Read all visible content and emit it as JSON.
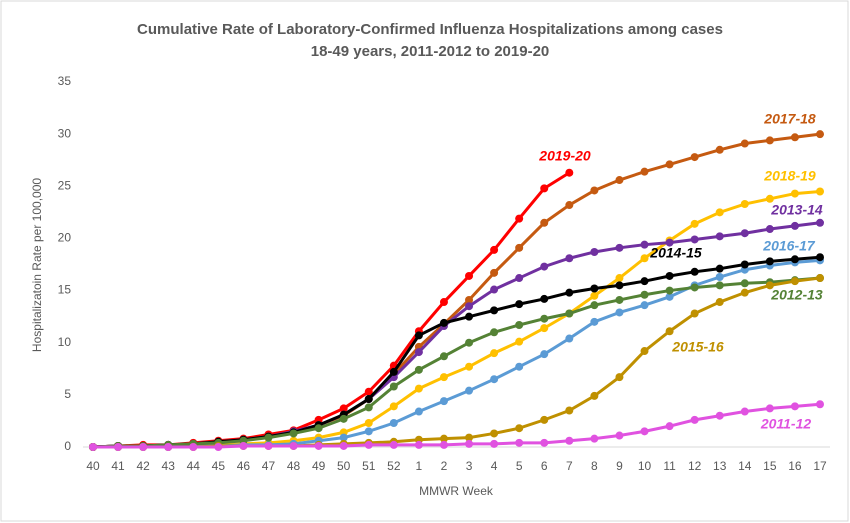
{
  "chart_data": {
    "type": "line",
    "title": "Cumulative Rate of Laboratory-Confirmed  Influenza Hospitalizations among cases",
    "subtitle": "18-49 years, 2011-2012 to 2019-20",
    "x_label": "MMWR Week",
    "y_label": "Hospitalizatoin Rate per 100,000",
    "categories": [
      "40",
      "41",
      "42",
      "43",
      "44",
      "45",
      "46",
      "47",
      "48",
      "49",
      "50",
      "51",
      "52",
      "1",
      "2",
      "3",
      "4",
      "5",
      "6",
      "7",
      "8",
      "9",
      "10",
      "11",
      "12",
      "13",
      "14",
      "15",
      "16",
      "17"
    ],
    "ylim": [
      0,
      35
    ],
    "yticks": [
      0,
      5,
      10,
      15,
      20,
      25,
      30,
      35
    ],
    "grid": false,
    "series": [
      {
        "name": "2019-20",
        "color": "#ff0000",
        "values": [
          0,
          0.1,
          0.2,
          0.2,
          0.4,
          0.6,
          0.8,
          1.2,
          1.6,
          2.6,
          3.7,
          5.3,
          7.8,
          11.1,
          13.9,
          16.4,
          18.9,
          21.9,
          24.8,
          26.3,
          null,
          null,
          null,
          null,
          null,
          null,
          null,
          null,
          null,
          null
        ]
      },
      {
        "name": "2017-18",
        "color": "#c55a11",
        "values": [
          0,
          0.1,
          0.1,
          0.2,
          0.3,
          0.5,
          0.7,
          1.0,
          1.4,
          2.1,
          3.0,
          4.6,
          7.0,
          9.6,
          11.8,
          14.1,
          16.7,
          19.1,
          21.5,
          23.2,
          24.6,
          25.6,
          26.4,
          27.1,
          27.8,
          28.5,
          29.1,
          29.4,
          29.7,
          30.0
        ]
      },
      {
        "name": "2018-19",
        "color": "#ffc000",
        "values": [
          0,
          0,
          0,
          0.1,
          0.1,
          0.2,
          0.3,
          0.4,
          0.6,
          0.9,
          1.4,
          2.3,
          3.9,
          5.6,
          6.7,
          7.7,
          9.0,
          10.1,
          11.4,
          12.8,
          14.5,
          16.2,
          18.1,
          19.8,
          21.4,
          22.5,
          23.3,
          23.8,
          24.3,
          24.5
        ]
      },
      {
        "name": "2013-14",
        "color": "#7030a0",
        "values": [
          0,
          0.1,
          0.1,
          0.2,
          0.3,
          0.5,
          0.7,
          1.0,
          1.5,
          2.1,
          3.1,
          4.6,
          6.7,
          9.1,
          11.6,
          13.5,
          15.1,
          16.2,
          17.3,
          18.1,
          18.7,
          19.1,
          19.4,
          19.6,
          19.9,
          20.2,
          20.5,
          20.9,
          21.2,
          21.5
        ]
      },
      {
        "name": "2016-17",
        "color": "#5b9bd5",
        "values": [
          0,
          0,
          0,
          0,
          0.1,
          0.1,
          0.2,
          0.2,
          0.3,
          0.6,
          0.9,
          1.5,
          2.3,
          3.4,
          4.4,
          5.4,
          6.5,
          7.7,
          8.9,
          10.4,
          12.0,
          12.9,
          13.6,
          14.4,
          15.5,
          16.3,
          17.0,
          17.4,
          17.7,
          17.9
        ]
      },
      {
        "name": "2014-15",
        "color": "#000000",
        "values": [
          0,
          0.1,
          0.1,
          0.2,
          0.3,
          0.5,
          0.7,
          1.0,
          1.4,
          2.1,
          3.1,
          4.6,
          7.2,
          10.7,
          11.9,
          12.5,
          13.1,
          13.7,
          14.2,
          14.8,
          15.2,
          15.5,
          15.9,
          16.4,
          16.8,
          17.1,
          17.5,
          17.8,
          18.0,
          18.2
        ]
      },
      {
        "name": "2012-13",
        "color": "#548235",
        "values": [
          0,
          0.1,
          0.1,
          0.2,
          0.3,
          0.4,
          0.6,
          0.9,
          1.3,
          1.8,
          2.7,
          3.8,
          5.8,
          7.4,
          8.7,
          10.0,
          11.0,
          11.7,
          12.3,
          12.8,
          13.6,
          14.1,
          14.6,
          15.0,
          15.3,
          15.5,
          15.7,
          15.8,
          16.0,
          16.2
        ]
      },
      {
        "name": "2015-16",
        "color": "#bf9000",
        "values": [
          0,
          0,
          0,
          0,
          0,
          0.1,
          0.1,
          0.1,
          0.1,
          0.2,
          0.3,
          0.4,
          0.5,
          0.7,
          0.8,
          0.9,
          1.3,
          1.8,
          2.6,
          3.5,
          4.9,
          6.7,
          9.2,
          11.1,
          12.8,
          13.9,
          14.8,
          15.5,
          15.9,
          16.2
        ]
      },
      {
        "name": "2011-12",
        "color": "#e052e0",
        "values": [
          0,
          0,
          0,
          0,
          0,
          0,
          0.1,
          0.1,
          0.1,
          0.1,
          0.1,
          0.2,
          0.2,
          0.2,
          0.2,
          0.3,
          0.3,
          0.4,
          0.4,
          0.6,
          0.8,
          1.1,
          1.5,
          2.0,
          2.6,
          3.0,
          3.4,
          3.7,
          3.9,
          4.1
        ]
      }
    ]
  }
}
